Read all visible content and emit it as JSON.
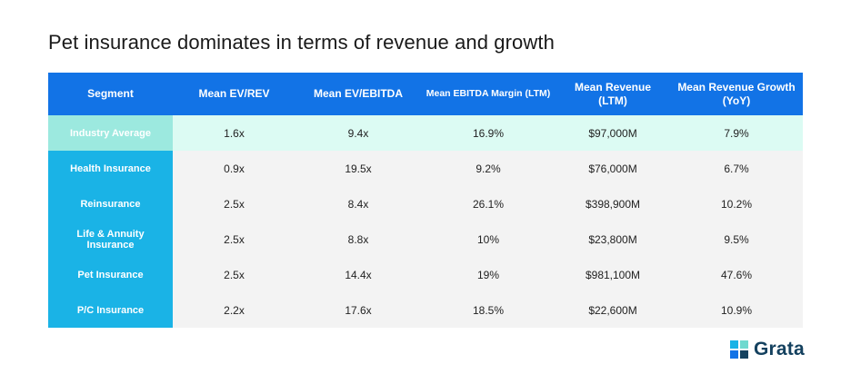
{
  "chart_data": {
    "type": "table",
    "title": "Pet insurance dominates in terms of revenue and growth",
    "columns": [
      "Segment",
      "Mean EV/REV",
      "Mean EV/EBITDA",
      "Mean EBITDA Margin (LTM)",
      "Mean Revenue (LTM)",
      "Mean Revenue Growth (YoY)"
    ],
    "rows": [
      [
        "Industry Average",
        "1.6x",
        "9.4x",
        "16.9%",
        "$97,000M",
        "7.9%"
      ],
      [
        "Health Insurance",
        "0.9x",
        "19.5x",
        "9.2%",
        "$76,000M",
        "6.7%"
      ],
      [
        "Reinsurance",
        "2.5x",
        "8.4x",
        "26.1%",
        "$398,900M",
        "10.2%"
      ],
      [
        "Life & Annuity Insurance",
        "2.5x",
        "8.8x",
        "10%",
        "$23,800M",
        "9.5%"
      ],
      [
        "Pet Insurance",
        "2.5x",
        "14.4x",
        "19%",
        "$981,100M",
        "47.6%"
      ],
      [
        "P/C Insurance",
        "2.2x",
        "17.6x",
        "18.5%",
        "$22,600M",
        "10.9%"
      ]
    ]
  },
  "logo": {
    "text": "Grata"
  },
  "colors": {
    "header": "#1273e6",
    "segment": "#1ab3e6",
    "average_row": "#dcfbf3",
    "average_segment": "#9ce9df",
    "body": "#f3f3f3"
  }
}
